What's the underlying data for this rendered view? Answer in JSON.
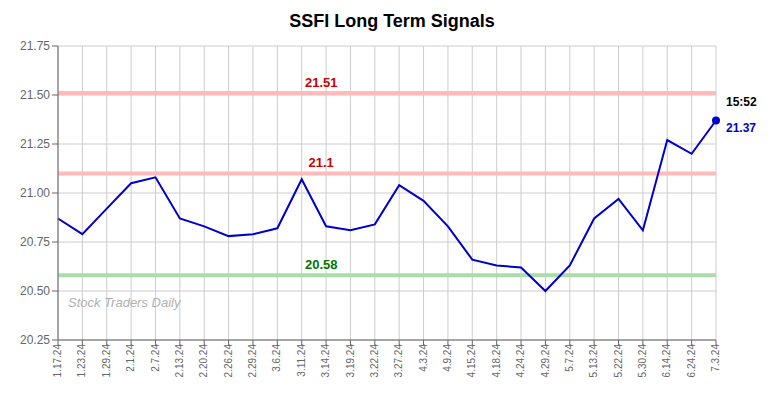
{
  "chart_data": {
    "type": "line",
    "title": "SSFI Long Term Signals",
    "categories": [
      "1.17.24",
      "1.23.24",
      "1.29.24",
      "2.1.24",
      "2.7.24",
      "2.13.24",
      "2.20.24",
      "2.26.24",
      "2.29.24",
      "3.6.24",
      "3.11.24",
      "3.14.24",
      "3.19.24",
      "3.22.24",
      "3.27.24",
      "4.3.24",
      "4.9.24",
      "4.15.24",
      "4.18.24",
      "4.24.24",
      "4.29.24",
      "5.7.24",
      "5.13.24",
      "5.22.24",
      "5.30.24",
      "6.14.24",
      "6.24.24",
      "7.3.24"
    ],
    "values": [
      20.87,
      20.79,
      20.92,
      21.05,
      21.08,
      20.87,
      20.83,
      20.78,
      20.79,
      20.82,
      21.07,
      20.83,
      20.81,
      20.84,
      21.04,
      20.96,
      20.83,
      20.66,
      20.63,
      20.62,
      20.5,
      20.63,
      20.87,
      20.97,
      20.81,
      21.27,
      21.2,
      21.37
    ],
    "color": "#0000cc",
    "ylim": [
      20.25,
      21.75
    ],
    "yticks": [
      20.25,
      {
        "value": 20.5,
        "label": "20.50"
      },
      20.75,
      {
        "value": 21.0,
        "label": "21.00"
      },
      21.25,
      {
        "value": 21.5,
        "label": "21.50"
      },
      21.75
    ],
    "grid": true,
    "reference_lines": [
      {
        "value": 21.51,
        "label": "21.51",
        "color": "#ffbbbb",
        "label_color": "#cc0000"
      },
      {
        "value": 21.1,
        "label": "21.1",
        "color": "#ffbbbb",
        "label_color": "#cc0000"
      },
      {
        "value": 20.58,
        "label": "20.58",
        "color": "#aaddaa",
        "label_color": "#007700"
      }
    ],
    "last_point_labels": [
      {
        "text": "15:52",
        "color": "#000000"
      },
      {
        "text": "21.37",
        "color": "#0000cc"
      }
    ],
    "annotations": [
      "Stock Traders Daily"
    ]
  }
}
